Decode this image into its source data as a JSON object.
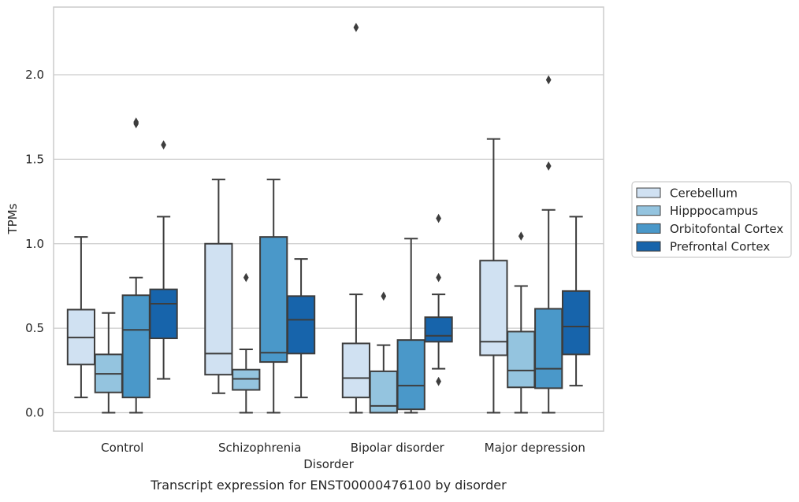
{
  "chart_data": {
    "type": "boxplot",
    "caption": "Transcript expression for ENST00000476100 by disorder",
    "xlabel": "Disorder",
    "ylabel": "TPMs",
    "ylim": [
      -0.11,
      2.4
    ],
    "yticks": [
      0.0,
      0.5,
      1.0,
      1.5,
      2.0
    ],
    "ytick_labels": [
      "0.0",
      "0.5",
      "1.0",
      "1.5",
      "2.0"
    ],
    "grid": "horizontal",
    "legend_position": "right",
    "categories": [
      "Control",
      "Schizophrenia",
      "Bipolar disorder",
      "Major depression"
    ],
    "series": [
      {
        "name": "Cerebellum",
        "color": "#d0e1f2",
        "boxes": [
          {
            "whisker_low": 0.09,
            "q1": 0.285,
            "median": 0.445,
            "q3": 0.61,
            "whisker_high": 1.04,
            "outliers": []
          },
          {
            "whisker_low": 0.115,
            "q1": 0.225,
            "median": 0.35,
            "q3": 1.0,
            "whisker_high": 1.38,
            "outliers": []
          },
          {
            "whisker_low": 0.0,
            "q1": 0.09,
            "median": 0.205,
            "q3": 0.41,
            "whisker_high": 0.7,
            "outliers": [
              2.28
            ]
          },
          {
            "whisker_low": 0.0,
            "q1": 0.34,
            "median": 0.42,
            "q3": 0.9,
            "whisker_high": 1.62,
            "outliers": []
          }
        ]
      },
      {
        "name": "Hipppocampus",
        "color": "#94c4df",
        "boxes": [
          {
            "whisker_low": 0.0,
            "q1": 0.12,
            "median": 0.23,
            "q3": 0.345,
            "whisker_high": 0.59,
            "outliers": []
          },
          {
            "whisker_low": 0.0,
            "q1": 0.135,
            "median": 0.2,
            "q3": 0.255,
            "whisker_high": 0.375,
            "outliers": [
              0.8
            ]
          },
          {
            "whisker_low": 0.0,
            "q1": 0.0,
            "median": 0.04,
            "q3": 0.245,
            "whisker_high": 0.4,
            "outliers": [
              0.69
            ]
          },
          {
            "whisker_low": 0.0,
            "q1": 0.15,
            "median": 0.25,
            "q3": 0.48,
            "whisker_high": 0.75,
            "outliers": [
              1.045
            ]
          }
        ]
      },
      {
        "name": "Orbitofontal Cortex",
        "color": "#4a98c9",
        "boxes": [
          {
            "whisker_low": 0.0,
            "q1": 0.09,
            "median": 0.49,
            "q3": 0.695,
            "whisker_high": 0.8,
            "outliers": [
              1.71,
              1.72
            ]
          },
          {
            "whisker_low": 0.0,
            "q1": 0.3,
            "median": 0.355,
            "q3": 1.04,
            "whisker_high": 1.38,
            "outliers": []
          },
          {
            "whisker_low": 0.0,
            "q1": 0.02,
            "median": 0.16,
            "q3": 0.43,
            "whisker_high": 1.03,
            "outliers": []
          },
          {
            "whisker_low": 0.0,
            "q1": 0.145,
            "median": 0.26,
            "q3": 0.615,
            "whisker_high": 1.2,
            "outliers": [
              1.46,
              1.97
            ]
          }
        ]
      },
      {
        "name": "Prefrontal Cortex",
        "color": "#1764ab",
        "boxes": [
          {
            "whisker_low": 0.2,
            "q1": 0.44,
            "median": 0.645,
            "q3": 0.73,
            "whisker_high": 1.16,
            "outliers": [
              1.585
            ]
          },
          {
            "whisker_low": 0.09,
            "q1": 0.35,
            "median": 0.55,
            "q3": 0.69,
            "whisker_high": 0.91,
            "outliers": []
          },
          {
            "whisker_low": 0.26,
            "q1": 0.42,
            "median": 0.455,
            "q3": 0.565,
            "whisker_high": 0.7,
            "outliers": [
              0.185,
              0.8,
              1.15
            ]
          },
          {
            "whisker_low": 0.16,
            "q1": 0.345,
            "median": 0.51,
            "q3": 0.72,
            "whisker_high": 1.16,
            "outliers": []
          }
        ]
      }
    ]
  }
}
